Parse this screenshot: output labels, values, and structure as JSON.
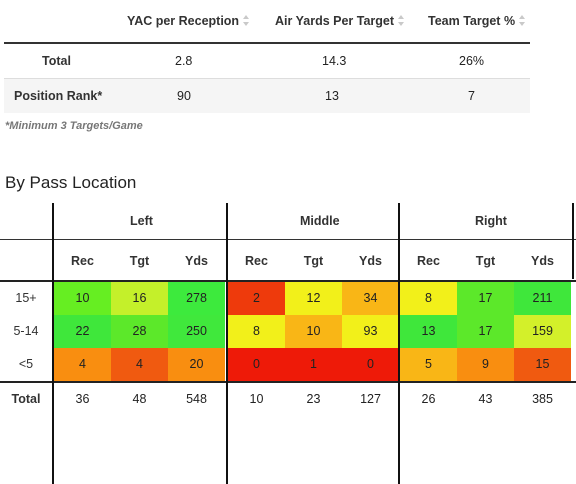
{
  "stats_table": {
    "columns": [
      "YAC per Reception",
      "Air Yards Per Target",
      "Team Target %"
    ],
    "rows": [
      {
        "label": "Total",
        "values": [
          "2.8",
          "14.3",
          "26%"
        ]
      },
      {
        "label": "Position Rank*",
        "values": [
          "90",
          "13",
          "7"
        ]
      }
    ],
    "footnote": "*Minimum 3 Targets/Game"
  },
  "section_title": "By Pass Location",
  "location_table": {
    "groups": [
      "Left",
      "Middle",
      "Right"
    ],
    "subheaders": [
      "Rec",
      "Tgt",
      "Yds",
      "Rec",
      "Tgt",
      "Yds",
      "Rec",
      "Tgt",
      "Yds"
    ],
    "rows": [
      {
        "label": "15+",
        "values": [
          "10",
          "16",
          "278",
          "2",
          "12",
          "34",
          "8",
          "17",
          "211"
        ],
        "colors": [
          "#66ee22",
          "#c4f02a",
          "#3dea3d",
          "#ee3a0c",
          "#f2f01a",
          "#f9b616",
          "#f2f01a",
          "#5ce82a",
          "#3fe73b"
        ]
      },
      {
        "label": "5-14",
        "values": [
          "22",
          "28",
          "250",
          "8",
          "10",
          "93",
          "13",
          "17",
          "159"
        ],
        "colors": [
          "#3fe73b",
          "#5ce82a",
          "#40e83c",
          "#f2f01a",
          "#f9b616",
          "#f2f01a",
          "#3fe73b",
          "#5ce82a",
          "#d3f02a"
        ]
      },
      {
        "label": "<5",
        "values": [
          "4",
          "4",
          "20",
          "0",
          "1",
          "0",
          "5",
          "9",
          "15"
        ],
        "colors": [
          "#f98e10",
          "#f05a10",
          "#f98e10",
          "#ee1a08",
          "#ee1a08",
          "#ee1a08",
          "#f9b616",
          "#f98e10",
          "#f05a10"
        ]
      }
    ],
    "totals": {
      "label": "Total",
      "values": [
        "36",
        "48",
        "548",
        "10",
        "23",
        "127",
        "26",
        "43",
        "385"
      ]
    }
  }
}
